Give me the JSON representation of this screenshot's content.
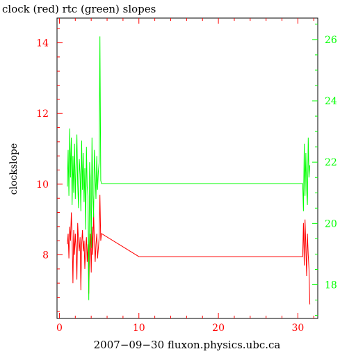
{
  "chart_data": {
    "type": "line",
    "title": "clock (red) rtc (green) slopes",
    "xlabel": "2007−09−30 fluxon.physics.ubc.ca",
    "ylabel": "clockslope",
    "grid": false,
    "xlim": [
      -0.3,
      32.5
    ],
    "ylim_left": [
      6.2,
      14.7
    ],
    "ylim_right": [
      16.9,
      26.7
    ],
    "x_ticks": [
      "0",
      "10",
      "20",
      "30"
    ],
    "y_ticks_left": [
      "8",
      "10",
      "12",
      "14"
    ],
    "y_ticks_right": [
      "18",
      "20",
      "22",
      "24",
      "26"
    ],
    "colors": {
      "clock": "#ff0000",
      "rtc": "#00ff00",
      "axes": "#000000"
    },
    "series": [
      {
        "name": "clock",
        "axis": "left",
        "color": "#ff0000",
        "x": [
          1.0,
          1.1,
          1.2,
          1.3,
          1.4,
          1.5,
          1.6,
          1.7,
          1.8,
          1.9,
          2.0,
          2.1,
          2.2,
          2.3,
          2.4,
          2.5,
          2.6,
          2.7,
          2.8,
          2.9,
          3.0,
          3.1,
          3.2,
          3.3,
          3.4,
          3.5,
          3.6,
          3.7,
          3.8,
          3.9,
          4.0,
          4.1,
          4.2,
          4.3,
          4.4,
          4.5,
          4.6,
          4.7,
          4.8,
          4.9,
          5.0,
          5.1,
          5.2,
          5.3,
          10.0,
          20.0,
          30.6,
          30.7,
          30.8,
          30.9,
          31.0,
          31.1,
          31.2,
          31.3,
          31.4,
          31.5
        ],
        "y": [
          8.3,
          8.6,
          7.9,
          8.8,
          8.4,
          9.2,
          8.5,
          7.2,
          8.7,
          8.0,
          8.6,
          8.2,
          7.3,
          8.9,
          8.4,
          8.1,
          8.5,
          7.0,
          8.3,
          8.7,
          8.1,
          8.4,
          7.6,
          8.2,
          8.5,
          7.8,
          8.3,
          6.9,
          8.2,
          8.6,
          7.5,
          8.8,
          8.0,
          9.2,
          8.4,
          7.8,
          8.3,
          8.6,
          7.9,
          8.2,
          8.5,
          9.7,
          8.4,
          8.6,
          7.95,
          7.95,
          7.95,
          8.9,
          7.7,
          9.0,
          8.2,
          7.4,
          8.6,
          8.0,
          7.6,
          6.6
        ]
      },
      {
        "name": "rtc",
        "axis": "right",
        "color": "#00ff00",
        "x": [
          1.0,
          1.1,
          1.2,
          1.3,
          1.4,
          1.5,
          1.6,
          1.7,
          1.8,
          1.9,
          2.0,
          2.1,
          2.2,
          2.3,
          2.4,
          2.5,
          2.6,
          2.7,
          2.8,
          2.9,
          3.0,
          3.1,
          3.2,
          3.3,
          3.4,
          3.5,
          3.6,
          3.7,
          3.8,
          3.9,
          4.0,
          4.1,
          4.2,
          4.3,
          4.4,
          4.5,
          4.6,
          4.7,
          4.8,
          4.9,
          5.0,
          5.1,
          5.2,
          5.3,
          10.0,
          20.0,
          30.6,
          30.7,
          30.8,
          30.9,
          31.0,
          31.1,
          31.2,
          31.3,
          31.4,
          31.5
        ],
        "y": [
          21.2,
          22.4,
          20.9,
          23.1,
          21.5,
          22.8,
          20.6,
          22.2,
          21.0,
          22.6,
          20.8,
          21.9,
          22.9,
          21.3,
          20.5,
          22.1,
          21.6,
          20.4,
          22.7,
          21.1,
          22.3,
          20.7,
          21.8,
          19.8,
          22.5,
          21.2,
          20.9,
          17.5,
          22.0,
          21.4,
          19.2,
          22.8,
          21.0,
          20.2,
          22.4,
          21.6,
          20.8,
          22.2,
          21.1,
          21.7,
          22.0,
          26.1,
          21.4,
          21.3,
          21.3,
          21.3,
          21.3,
          20.4,
          22.6,
          20.9,
          22.3,
          21.1,
          20.6,
          22.8,
          21.5,
          21.9
        ]
      }
    ]
  }
}
